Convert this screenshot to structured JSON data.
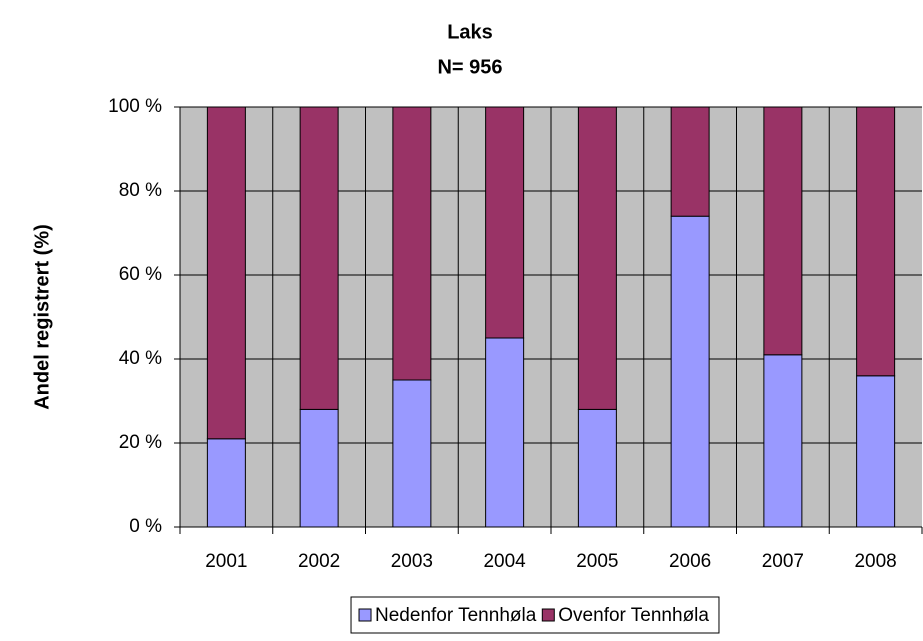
{
  "chart_data": {
    "type": "stacked_bar",
    "title": "Laks",
    "subtitle": "N= 956",
    "y_label": "Andel registrert (%)",
    "categories": [
      "2001",
      "2002",
      "2003",
      "2004",
      "2005",
      "2006",
      "2007",
      "2008"
    ],
    "series": [
      {
        "name": "Nedenfor Tennhøla",
        "color": "#9999ff",
        "values": [
          21,
          28,
          35,
          45,
          28,
          74,
          41,
          36
        ]
      },
      {
        "name": "Ovenfor Tennhøla",
        "color": "#993366",
        "values": [
          79,
          72,
          65,
          55,
          72,
          26,
          59,
          64
        ]
      }
    ],
    "ylim": [
      0,
      100
    ],
    "yticks": [
      {
        "value": 0,
        "label": "0 %"
      },
      {
        "value": 20,
        "label": "20 %"
      },
      {
        "value": 40,
        "label": "40 %"
      },
      {
        "value": 60,
        "label": "60 %"
      },
      {
        "value": 80,
        "label": "80 %"
      },
      {
        "value": 100,
        "label": "100 %"
      }
    ],
    "grid": true,
    "background": "#c0c0c0",
    "legend": "bottom"
  }
}
